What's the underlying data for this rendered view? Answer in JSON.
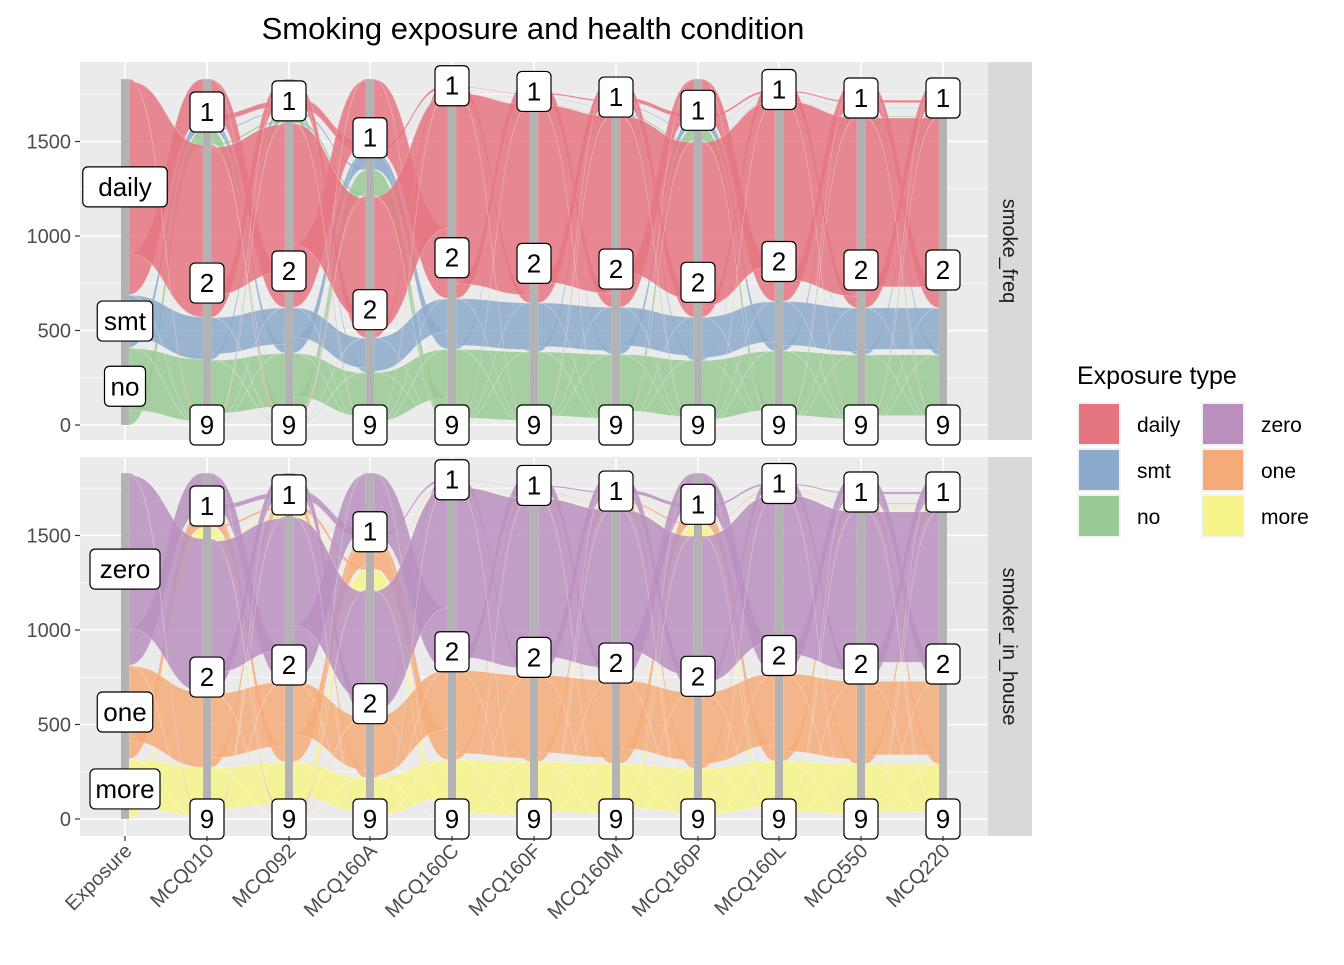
{
  "chart_data": {
    "type": "alluvial",
    "title": "Smoking exposure and health condition",
    "xlabel": "",
    "ylabel": "",
    "axes": [
      "Exposure",
      "MCQ010",
      "MCQ092",
      "MCQ160A",
      "MCQ160C",
      "MCQ160F",
      "MCQ160M",
      "MCQ160P",
      "MCQ160L",
      "MCQ550",
      "MCQ220"
    ],
    "ylim": [
      0,
      1900
    ],
    "yticks": [
      0,
      500,
      1000,
      1500
    ],
    "grid": true,
    "legend": {
      "title": "Exposure type",
      "placement": "right",
      "entries": [
        {
          "label": "daily",
          "color": "#E57681"
        },
        {
          "label": "smt",
          "color": "#8CAACB"
        },
        {
          "label": "no",
          "color": "#99C994"
        },
        {
          "label": "zero",
          "color": "#B990BE"
        },
        {
          "label": "one",
          "color": "#F5AB79"
        },
        {
          "label": "more",
          "color": "#F7F58A"
        }
      ]
    },
    "health_strata_order": [
      "9",
      "2",
      "1"
    ],
    "health_strata_counts": {
      "MCQ010": [
        20,
        1462,
        348
      ],
      "MCQ092": [
        30,
        1570,
        230
      ],
      "MCQ160A": [
        10,
        1200,
        620
      ],
      "MCQ160C": [
        10,
        1750,
        70
      ],
      "MCQ160F": [
        10,
        1690,
        130
      ],
      "MCQ160M": [
        10,
        1630,
        190
      ],
      "MCQ160P": [
        10,
        1490,
        330
      ],
      "MCQ160L": [
        10,
        1710,
        110
      ],
      "MCQ550": [
        10,
        1620,
        200
      ],
      "MCQ220": [
        10,
        1620,
        200
      ]
    },
    "panels": [
      {
        "facet": "smoke_freq",
        "exposure_order": [
          "no",
          "smt",
          "daily"
        ],
        "exposure_counts": {
          "no": 410,
          "smt": 280,
          "daily": 1140
        }
      },
      {
        "facet": "smoker_in_house",
        "exposure_order": [
          "more",
          "one",
          "zero"
        ],
        "exposure_counts": {
          "more": 318,
          "one": 496,
          "zero": 1016
        }
      }
    ]
  }
}
